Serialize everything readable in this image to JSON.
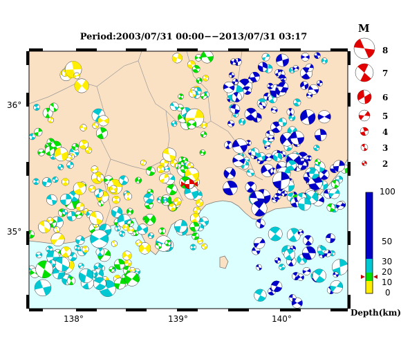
{
  "title": "Period:2003/07/31 00:00−−2013/07/31 03:17",
  "magnitude_scale": {
    "heading": "M",
    "levels": [
      "8",
      "7",
      "6",
      "5",
      "4",
      "3",
      "2"
    ]
  },
  "depth_scale": {
    "title": "Depth(km)",
    "ticks": [
      "100",
      "50",
      "30",
      "20",
      "10",
      "0"
    ],
    "colors": {
      "shallow": "#ffee00",
      "mid": "#00e000",
      "deep1": "#00c8d2",
      "deep2": "#0000c8"
    }
  },
  "map": {
    "x_ticks": [
      "138°",
      "139°",
      "140°"
    ],
    "y_ticks": [
      "36°",
      "35°"
    ],
    "colors": {
      "land": "#fbe1c3",
      "sea": "#dcffff",
      "mechanism": "#e00000"
    }
  }
}
